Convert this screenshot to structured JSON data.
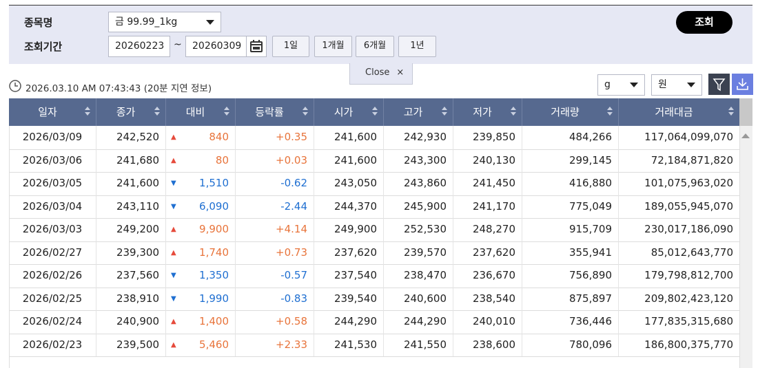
{
  "filter": {
    "item_label": "종목명",
    "item_value": "금 99.99_1kg",
    "period_label": "조회기간",
    "start_date": "20260223",
    "separator": "~",
    "end_date": "20260309",
    "ranges": [
      "1일",
      "1개월",
      "6개월",
      "1년"
    ],
    "search_button": "조회",
    "close_button": "Close"
  },
  "status": {
    "timestamp": "2026.03.10 AM 07:43:43",
    "note": "(20분 지연 정보)"
  },
  "unit_selects": {
    "weight": "g",
    "currency": "원"
  },
  "table": {
    "columns": [
      "일자",
      "종가",
      "대비",
      "등락률",
      "시가",
      "고가",
      "저가",
      "거래량",
      "거래대금"
    ],
    "rows": [
      [
        "2026/03/09",
        "242,520",
        "▲",
        "840",
        "+0.35",
        "241,600",
        "242,930",
        "239,850",
        "484,266",
        "117,064,099,070"
      ],
      [
        "2026/03/06",
        "241,680",
        "▲",
        "80",
        "+0.03",
        "241,600",
        "243,300",
        "240,130",
        "299,145",
        "72,184,871,820"
      ],
      [
        "2026/03/05",
        "241,600",
        "▼",
        "1,510",
        "-0.62",
        "243,050",
        "243,860",
        "241,450",
        "416,880",
        "101,075,963,020"
      ],
      [
        "2026/03/04",
        "243,110",
        "▼",
        "6,090",
        "-2.44",
        "244,370",
        "245,900",
        "241,170",
        "775,049",
        "189,055,945,070"
      ],
      [
        "2026/03/03",
        "249,200",
        "▲",
        "9,900",
        "+4.14",
        "249,900",
        "252,530",
        "248,270",
        "915,709",
        "230,017,186,090"
      ],
      [
        "2026/02/27",
        "239,300",
        "▲",
        "1,740",
        "+0.73",
        "237,620",
        "239,570",
        "237,620",
        "355,941",
        "85,012,643,770"
      ],
      [
        "2026/02/26",
        "237,560",
        "▼",
        "1,350",
        "-0.57",
        "237,540",
        "238,470",
        "236,670",
        "756,890",
        "179,798,812,700"
      ],
      [
        "2026/02/25",
        "238,910",
        "▼",
        "1,990",
        "-0.83",
        "239,540",
        "240,600",
        "238,540",
        "875,897",
        "209,802,423,120"
      ],
      [
        "2026/02/24",
        "240,900",
        "▲",
        "1,400",
        "+0.58",
        "244,290",
        "244,290",
        "240,010",
        "736,446",
        "177,835,315,680"
      ],
      [
        "2026/02/23",
        "239,500",
        "▲",
        "5,460",
        "+2.33",
        "241,530",
        "241,550",
        "238,600",
        "780,096",
        "186,800,375,770"
      ]
    ]
  }
}
